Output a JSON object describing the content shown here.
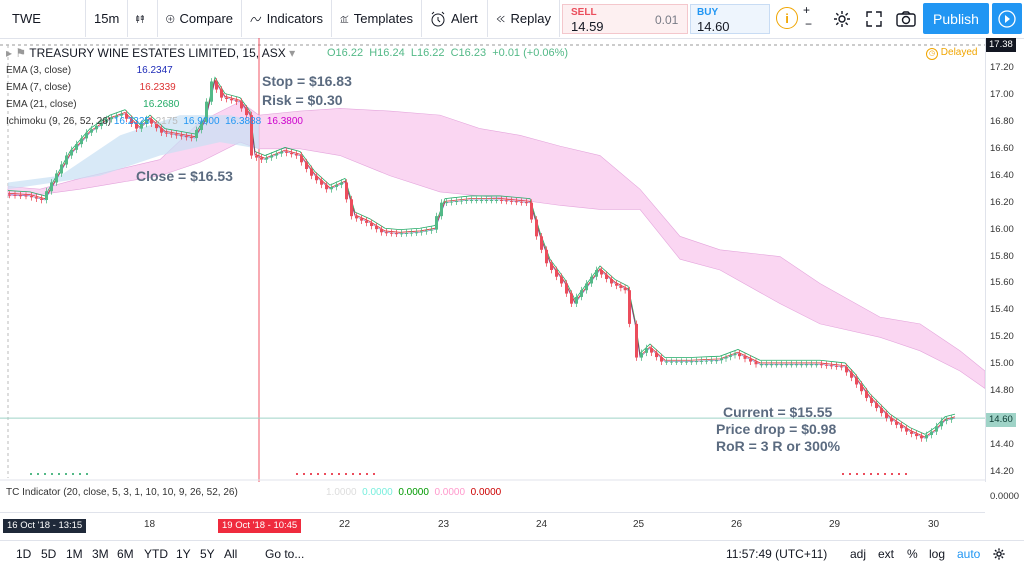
{
  "toolbar": {
    "symbol": "TWE",
    "interval": "15m",
    "compare": "Compare",
    "indicators": "Indicators",
    "templates": "Templates",
    "alert": "Alert",
    "replay": "Replay",
    "sell_label": "SELL",
    "sell_price": "14.59",
    "spread": "0.01",
    "buy_label": "BUY",
    "buy_price": "14.60",
    "publish": "Publish"
  },
  "legend": {
    "title": "TREASURY WINE ESTATES LIMITED, 15, ASX",
    "open": "O16.22",
    "high": "H16.24",
    "low": "L16.22",
    "close": "C16.23",
    "change": "+0.01 (+0.06%)",
    "delayed": "Delayed",
    "ema3": "EMA (3, close)",
    "ema3_val": "16.2347",
    "ema7": "EMA (7, close)",
    "ema7_val": "16.2339",
    "ema21": "EMA (21, close)",
    "ema21_val": "16.2680",
    "ichimoku": "Ichimoku (9, 26, 52, 26)",
    "ichi_v1": "16.2325",
    "ichi_v2": "16.9000",
    "ichi_v3": "16.3888",
    "ichi_v4": "16.3800",
    "tc": "TC Indicator (20, close, 5, 3, 1, 10, 10, 9, 26, 52, 26)",
    "tc_v1": "1.0000",
    "tc_v2": "0.0000",
    "tc_v3": "0.0000",
    "tc_v4": "0.0000",
    "tc_v5": "0.0000"
  },
  "annotations": {
    "stop": "Stop = $16.83",
    "risk": "Risk = $0.30",
    "close": "Close = $16.53",
    "current": "Current = $15.55",
    "drop": "Price drop = $0.98",
    "ror": "RoR = 3 R  or 300%"
  },
  "yaxis": {
    "ticks": [
      "17.20",
      "17.00",
      "16.80",
      "16.60",
      "16.40",
      "16.20",
      "16.00",
      "15.80",
      "15.60",
      "15.40",
      "15.20",
      "15.00",
      "14.80",
      "14.60",
      "14.40",
      "14.20"
    ],
    "top_tag": "17.38",
    "last_tag": "14.60",
    "sub_tick": "0.0000"
  },
  "xaxis": {
    "left_tag": "16 Oct '18 - 13:15",
    "cursor_tag": "19 Oct '18 - 10:45",
    "labels": [
      "18",
      "22",
      "23",
      "24",
      "25",
      "26",
      "29",
      "30"
    ]
  },
  "bottom": {
    "ranges": [
      "1D",
      "5D",
      "1M",
      "3M",
      "6M",
      "YTD",
      "1Y",
      "5Y",
      "All"
    ],
    "goto": "Go to...",
    "time": "11:57:49 (UTC+11)",
    "adj": "adj",
    "ext": "ext",
    "pct": "%",
    "log": "log",
    "auto": "auto"
  },
  "colors": {
    "up": "#53b987",
    "down": "#eb4d5c",
    "accent": "#2196f3",
    "cloud": "#f8c8ee",
    "ema3": "#1e2bb8",
    "ema7": "#d33",
    "ema21": "#2a6"
  }
}
